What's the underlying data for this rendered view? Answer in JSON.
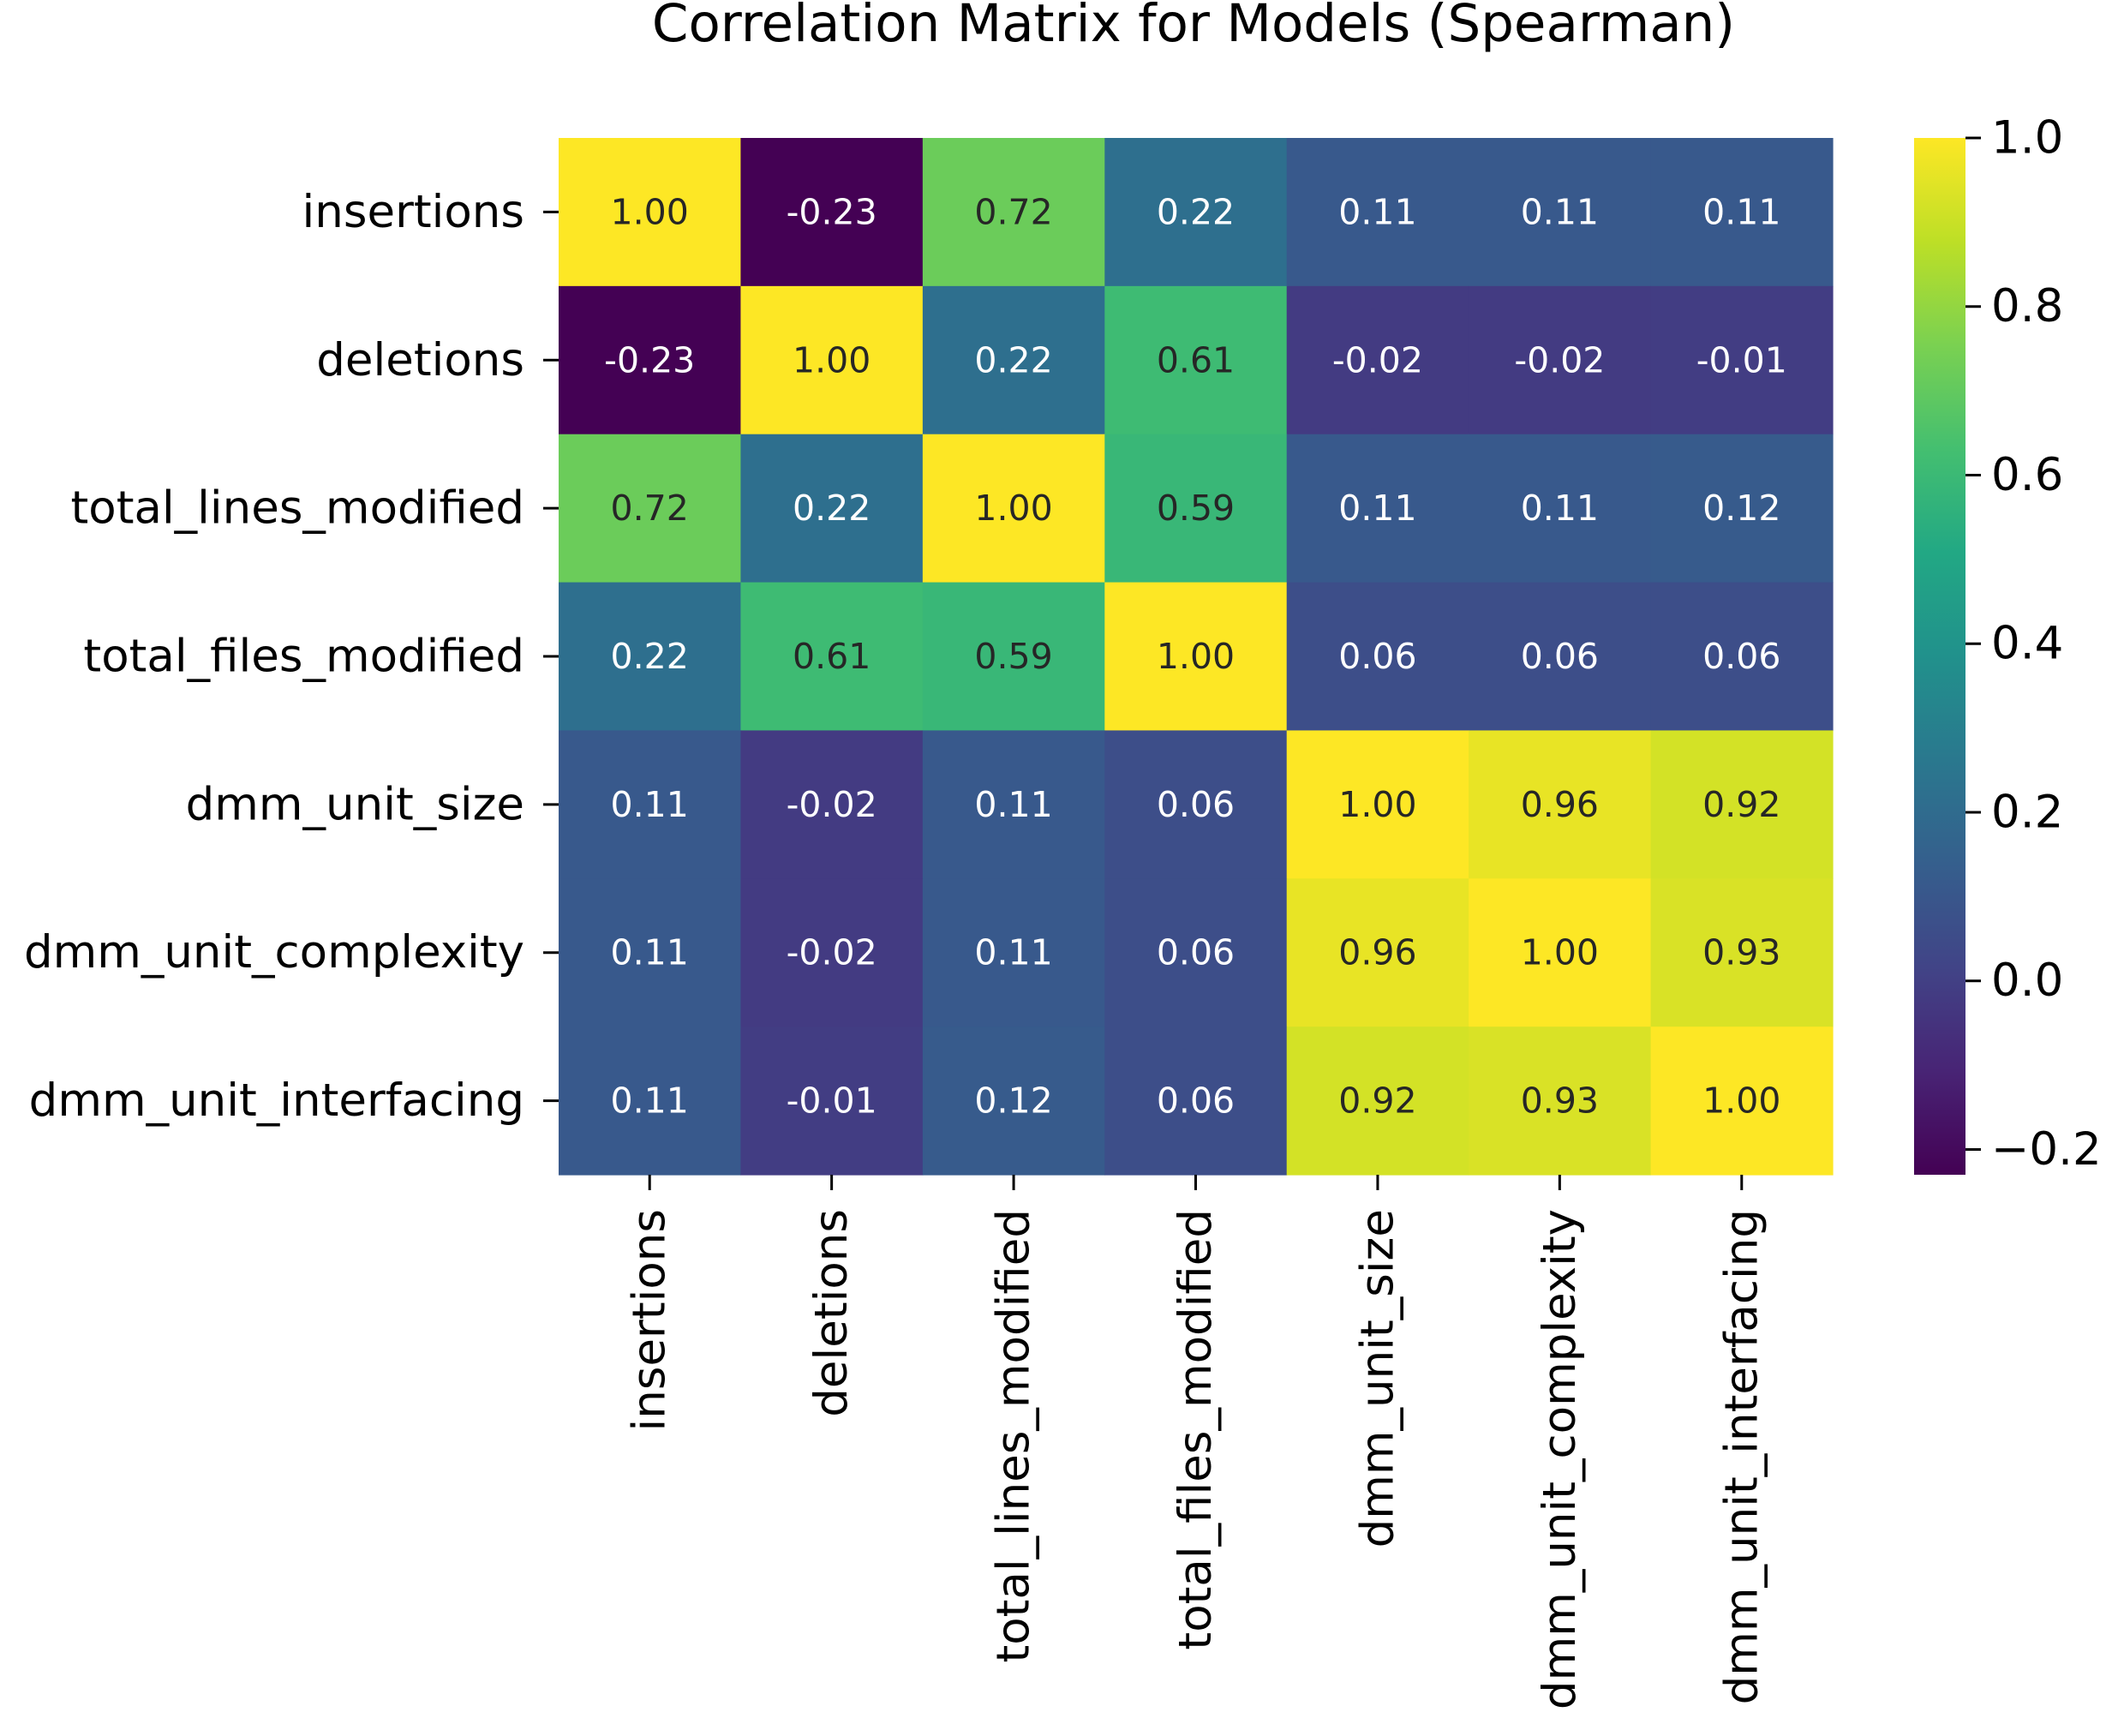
{
  "chart_data": {
    "type": "heatmap",
    "title": "Correlation Matrix for Models (Spearman)",
    "row_labels": [
      "insertions",
      "deletions",
      "total_lines_modified",
      "total_files_modified",
      "dmm_unit_size",
      "dmm_unit_complexity",
      "dmm_unit_interfacing"
    ],
    "col_labels": [
      "insertions",
      "deletions",
      "total_lines_modified",
      "total_files_modified",
      "dmm_unit_size",
      "dmm_unit_complexity",
      "dmm_unit_interfacing"
    ],
    "values": [
      [
        1.0,
        -0.23,
        0.72,
        0.22,
        0.11,
        0.11,
        0.11
      ],
      [
        -0.23,
        1.0,
        0.22,
        0.61,
        -0.02,
        -0.02,
        -0.01
      ],
      [
        0.72,
        0.22,
        1.0,
        0.59,
        0.11,
        0.11,
        0.12
      ],
      [
        0.22,
        0.61,
        0.59,
        1.0,
        0.06,
        0.06,
        0.06
      ],
      [
        0.11,
        -0.02,
        0.11,
        0.06,
        1.0,
        0.96,
        0.92
      ],
      [
        0.11,
        -0.02,
        0.11,
        0.06,
        0.96,
        1.0,
        0.93
      ],
      [
        0.11,
        -0.01,
        0.12,
        0.06,
        0.92,
        0.93,
        1.0
      ]
    ],
    "value_format": "0.00",
    "colormap": "viridis",
    "vmin": -0.23,
    "vmax": 1.0,
    "colorbar_ticks": [
      1.0,
      0.8,
      0.6,
      0.4,
      0.2,
      0.0,
      -0.2
    ],
    "colorbar_tick_labels": [
      "1.0",
      "0.8",
      "0.6",
      "0.4",
      "0.2",
      "0.0",
      "−0.2"
    ],
    "colorbar_placement": "right",
    "grid": false
  }
}
